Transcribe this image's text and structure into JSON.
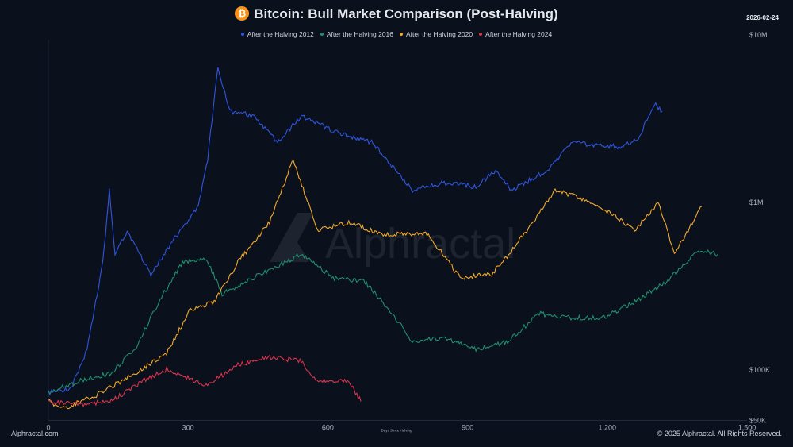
{
  "chart_data": {
    "type": "line",
    "title": "Bitcoin: Bull Market Comparison (Post-Halving)",
    "date": "2026-02-24",
    "xlabel": "Days Since Halving",
    "ylabel": "",
    "xlim": [
      0,
      1500
    ],
    "ylim": [
      50000,
      10000000
    ],
    "yscale": "log",
    "x_ticks": [
      0,
      300,
      600,
      900,
      1200,
      1500
    ],
    "x_tick_labels": [
      "0",
      "300",
      "600",
      "900",
      "1,200",
      "1,500"
    ],
    "y_ticks": [
      50000,
      100000,
      1000000,
      10000000
    ],
    "y_tick_labels": [
      "$50K",
      "$100K",
      "$1M",
      "$10M"
    ],
    "legend_position": "top",
    "grid": false,
    "series": [
      {
        "name": "After the Halving 2012",
        "color": "#2f55e0",
        "x": [
          0,
          49,
          83,
          117,
          131,
          143,
          169,
          220,
          271,
          322,
          342,
          364,
          390,
          441,
          492,
          543,
          611,
          697,
          782,
          850,
          918,
          960,
          994,
          1071,
          1122,
          1225,
          1267,
          1301,
          1318
        ],
        "y": [
          73000,
          78000,
          133000,
          442000,
          1180000,
          490000,
          680000,
          374000,
          612000,
          947000,
          1820000,
          6400000,
          3500000,
          3300000,
          2270000,
          3300000,
          2670000,
          2270000,
          1180000,
          1310000,
          1240000,
          1550000,
          1180000,
          1550000,
          2270000,
          2150000,
          2400000,
          3900000,
          3500000
        ]
      },
      {
        "name": "After the Halving 2016",
        "color": "#1f8f6e",
        "x": [
          0,
          66,
          135,
          186,
          237,
          288,
          339,
          373,
          441,
          543,
          611,
          680,
          731,
          782,
          850,
          918,
          986,
          1054,
          1122,
          1190,
          1259,
          1327,
          1395,
          1437
        ],
        "y": [
          73000,
          86000,
          96000,
          133000,
          255000,
          442000,
          466000,
          285000,
          355000,
          491000,
          355000,
          335000,
          230000,
          148000,
          156000,
          133000,
          148000,
          217000,
          205000,
          205000,
          255000,
          335000,
          520000,
          490000
        ]
      },
      {
        "name": "After the Halving 2020",
        "color": "#f2a82a",
        "x": [
          0,
          32,
          100,
          186,
          254,
          305,
          356,
          407,
          475,
          526,
          577,
          645,
          713,
          816,
          884,
          952,
          1003,
          1088,
          1173,
          1259,
          1310,
          1344,
          1403
        ],
        "y": [
          65000,
          59000,
          70000,
          96000,
          126000,
          230000,
          255000,
          442000,
          762000,
          1820000,
          680000,
          762000,
          645000,
          645000,
          355000,
          374000,
          549000,
          1180000,
          1000000,
          680000,
          1000000,
          491000,
          947000
        ]
      },
      {
        "name": "After the Halving 2024",
        "color": "#d9344d",
        "x": [
          0,
          66,
          135,
          203,
          254,
          339,
          407,
          475,
          543,
          577,
          645,
          671
        ],
        "y": [
          65000,
          62000,
          65000,
          86000,
          101000,
          81000,
          107000,
          119000,
          113000,
          86000,
          86000,
          65000
        ]
      }
    ]
  },
  "watermark": "Alphractal",
  "footer": {
    "left": "Alphractal.com",
    "right": "© 2025 Alphractal. All Rights Reserved."
  },
  "icons": {
    "title_icon": "bitcoin-icon"
  }
}
